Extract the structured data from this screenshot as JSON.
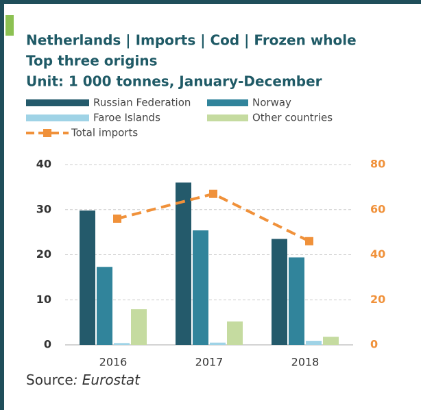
{
  "chart_data": {
    "type": "bar",
    "title": "Netherlands | Imports | Cod | Frozen whole",
    "subtitle": "Top three origins",
    "unit": "Unit: 1 000 tonnes, January-December",
    "categories": [
      "2016",
      "2017",
      "2018"
    ],
    "series": [
      {
        "name": "Russian Federation",
        "color": "#245a6b",
        "values": [
          29.8,
          36,
          23.5
        ]
      },
      {
        "name": "Norway",
        "color": "#31849b",
        "values": [
          17.3,
          25.4,
          19.4
        ]
      },
      {
        "name": "Faroe Islands",
        "color": "#9fd3e6",
        "values": [
          0.4,
          0.5,
          0.9
        ]
      },
      {
        "name": "Other countries",
        "color": "#c5dba0",
        "values": [
          7.9,
          5.2,
          1.8
        ]
      },
      {
        "name": "Total imports",
        "color": "#f0913a",
        "type": "line",
        "axis": "y2",
        "values": [
          56,
          67,
          46
        ]
      }
    ],
    "ylim": [
      0,
      40
    ],
    "yticks": [
      0,
      10,
      20,
      30,
      40
    ],
    "y2lim": [
      0,
      80
    ],
    "y2ticks": [
      0,
      20,
      40,
      60,
      80
    ],
    "grid": true,
    "source_prefix": "Source",
    "source_name": ": Eurostat"
  }
}
